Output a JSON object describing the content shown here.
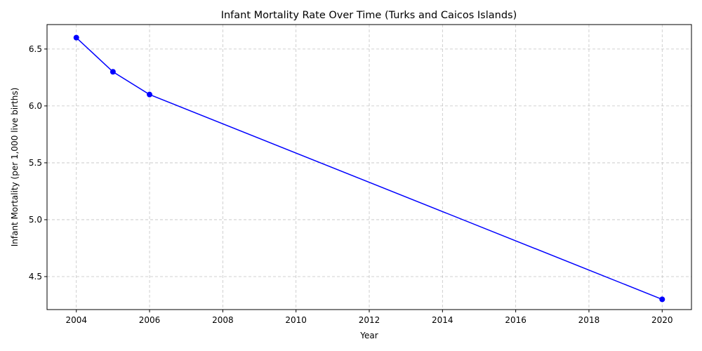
{
  "chart_data": {
    "type": "line",
    "title": "Infant Mortality Rate Over Time (Turks and Caicos Islands)",
    "xlabel": "Year",
    "ylabel": "Infant Mortality (per 1,000 live births)",
    "x": [
      2004,
      2005,
      2006,
      2020
    ],
    "series": [
      {
        "values": [
          6.6,
          6.3,
          6.1,
          4.3
        ]
      }
    ],
    "xlim": [
      2003.2,
      2020.8
    ],
    "ylim": [
      4.21,
      6.715
    ],
    "xticks": [
      2004,
      2006,
      2008,
      2010,
      2012,
      2014,
      2016,
      2018,
      2020
    ],
    "yticks": [
      4.5,
      5.0,
      5.5,
      6.0,
      6.5
    ],
    "ytick_labels": [
      "4.5",
      "5.0",
      "5.5",
      "6.0",
      "6.5"
    ],
    "grid": true,
    "line_color": "#0000ff",
    "marker": "circle"
  }
}
